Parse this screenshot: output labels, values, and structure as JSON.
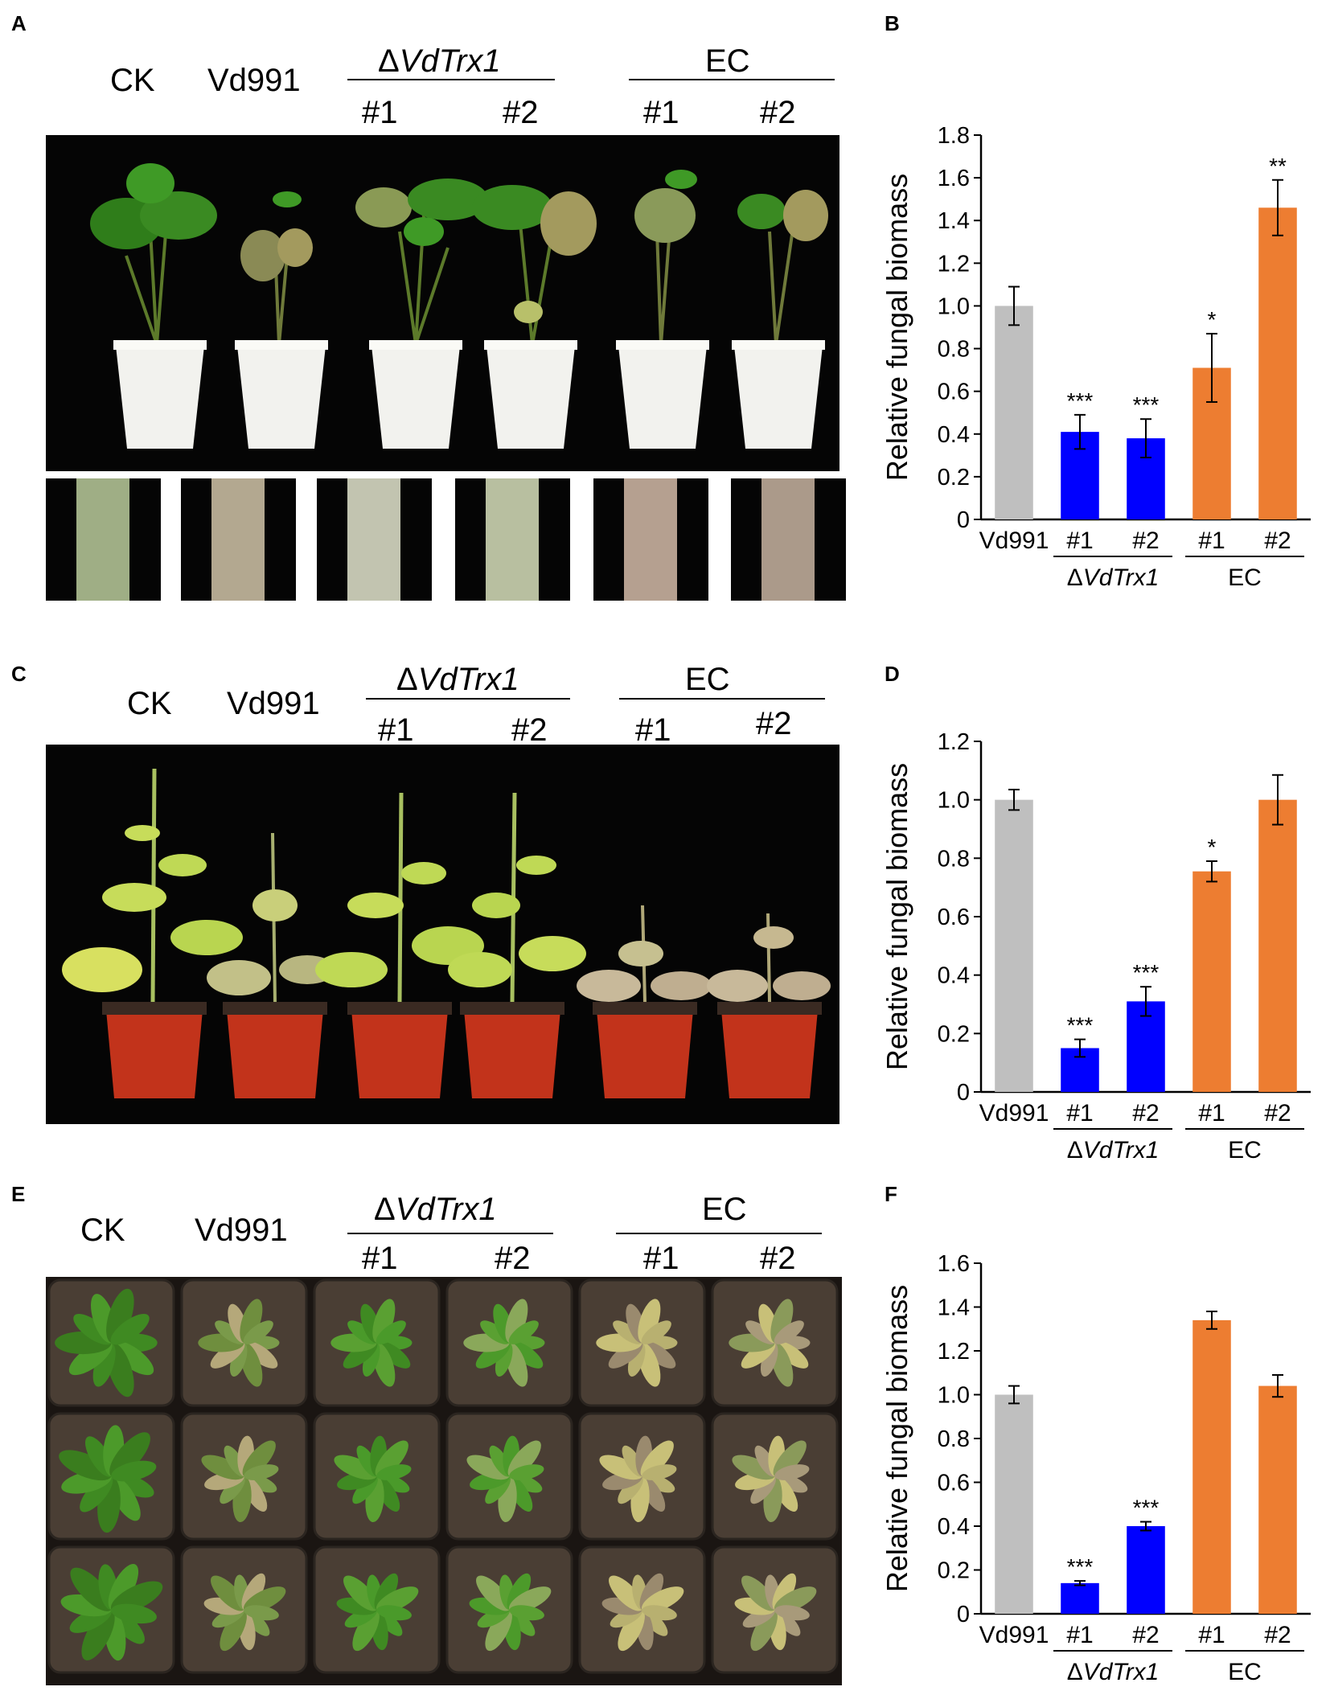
{
  "panel_letters": {
    "A": "A",
    "B": "B",
    "C": "C",
    "D": "D",
    "E": "E",
    "F": "F"
  },
  "photo_headers": {
    "ck": "CK",
    "vd991": "Vd991",
    "mutant_prefix": "Δ",
    "mutant_gene": "VdTrx1",
    "ec": "EC",
    "strain1": "#1",
    "strain2": "#2"
  },
  "colors": {
    "wildtype_bar": "#bfbfbf",
    "mutant_bar": "#0000ff",
    "complement_bar": "#ed7d31",
    "cotton_pot": "#f2f2ee",
    "tobacco_pot": "#c2331b"
  },
  "chart_data": [
    {
      "panel": "B",
      "type": "bar",
      "ylabel": "Relative fungal biomass",
      "ylim": [
        0,
        1.8
      ],
      "yticks": [
        "0",
        "0.2",
        "0.4",
        "0.6",
        "0.8",
        "1.0",
        "1.2",
        "1.4",
        "1.6",
        "1.8"
      ],
      "categories": [
        "Vd991",
        "#1",
        "#2",
        "#1",
        "#2"
      ],
      "groups": [
        {
          "label": "ΔVdTrx1",
          "italic_part": "VdTrx1"
        },
        {
          "label": "EC"
        }
      ],
      "values": [
        1.0,
        0.41,
        0.38,
        0.71,
        1.46
      ],
      "errors": [
        0.09,
        0.08,
        0.09,
        0.16,
        0.13
      ],
      "significance": [
        "",
        "***",
        "***",
        "*",
        "**"
      ]
    },
    {
      "panel": "D",
      "type": "bar",
      "ylabel": "Relative fungal biomass",
      "ylim": [
        0,
        1.2
      ],
      "yticks": [
        "0",
        "0.2",
        "0.4",
        "0.6",
        "0.8",
        "1.0",
        "1.2"
      ],
      "categories": [
        "Vd991",
        "#1",
        "#2",
        "#1",
        "#2"
      ],
      "groups": [
        {
          "label": "ΔVdTrx1",
          "italic_part": "VdTrx1"
        },
        {
          "label": "EC"
        }
      ],
      "values": [
        1.0,
        0.15,
        0.31,
        0.755,
        1.0
      ],
      "errors": [
        0.035,
        0.03,
        0.05,
        0.035,
        0.085
      ],
      "significance": [
        "",
        "***",
        "***",
        "*",
        ""
      ]
    },
    {
      "panel": "F",
      "type": "bar",
      "ylabel": "Relative fungal biomass",
      "ylim": [
        0,
        1.6
      ],
      "yticks": [
        "0",
        "0.2",
        "0.4",
        "0.6",
        "0.8",
        "1.0",
        "1.2",
        "1.4",
        "1.6"
      ],
      "categories": [
        "Vd991",
        "#1",
        "#2",
        "#1",
        "#2"
      ],
      "groups": [
        {
          "label": "ΔVdTrx1",
          "italic_part": "VdTrx1"
        },
        {
          "label": "EC"
        }
      ],
      "values": [
        1.0,
        0.14,
        0.4,
        1.34,
        1.04
      ],
      "errors": [
        0.04,
        0.01,
        0.02,
        0.04,
        0.05
      ],
      "significance": [
        "",
        "***",
        "***",
        "",
        ""
      ]
    }
  ]
}
